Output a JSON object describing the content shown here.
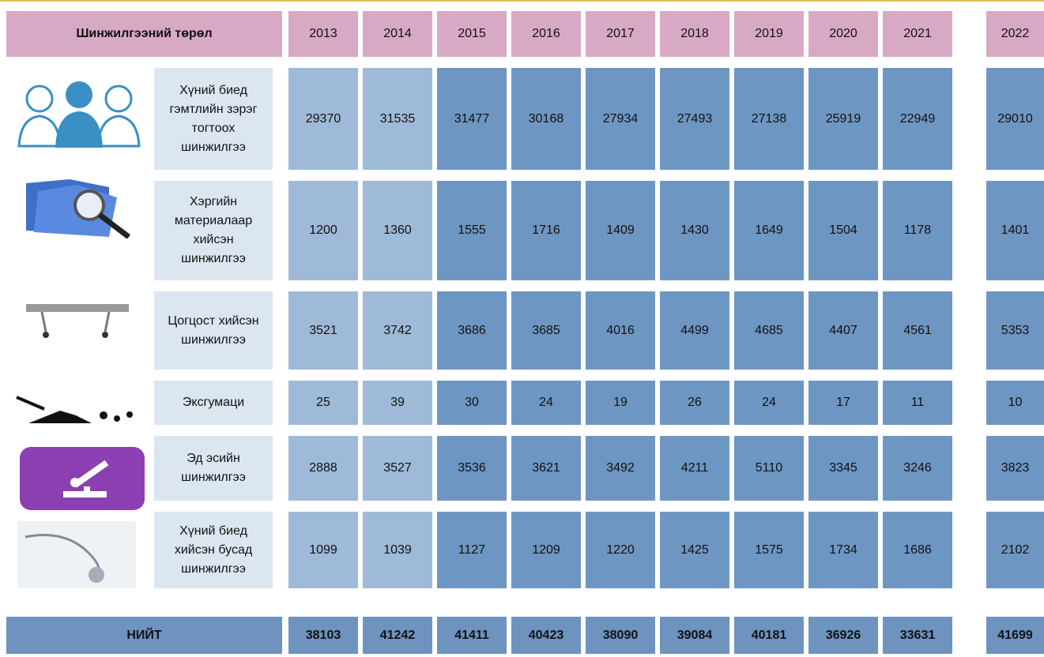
{
  "header": {
    "title": "Шинжилгээний төрөл",
    "years": [
      "2013",
      "2014",
      "2015",
      "2016",
      "2017",
      "2018",
      "2019",
      "2020",
      "2021",
      "2022"
    ]
  },
  "rows": [
    {
      "label": "Хүний биед гэмтлийн зэрэг тогтоох шинжилгээ",
      "values": [
        29370,
        31535,
        31477,
        30168,
        27934,
        27493,
        27138,
        25919,
        22949,
        29010
      ]
    },
    {
      "label": "Хэргийн материалаар хийсэн шинжилгээ",
      "values": [
        1200,
        1360,
        1555,
        1716,
        1409,
        1430,
        1649,
        1504,
        1178,
        1401
      ]
    },
    {
      "label": "Цогцост хийсэн шинжилгээ",
      "values": [
        3521,
        3742,
        3686,
        3685,
        4016,
        4499,
        4685,
        4407,
        4561,
        5353
      ]
    },
    {
      "label": "Эксгумаци",
      "values": [
        25,
        39,
        30,
        24,
        19,
        26,
        24,
        17,
        11,
        10
      ]
    },
    {
      "label": "Эд эсийн шинжилгээ",
      "values": [
        2888,
        3527,
        3536,
        3621,
        3492,
        4211,
        5110,
        3345,
        3246,
        3823
      ]
    },
    {
      "label": "Хүний биед хийсэн бусад шинжилгээ",
      "values": [
        1099,
        1039,
        1127,
        1209,
        1220,
        1425,
        1575,
        1734,
        1686,
        2102
      ]
    }
  ],
  "total": {
    "label": "НИЙТ",
    "values": [
      38103,
      41242,
      41411,
      40423,
      38090,
      39084,
      40181,
      36926,
      33631,
      41699
    ]
  }
}
